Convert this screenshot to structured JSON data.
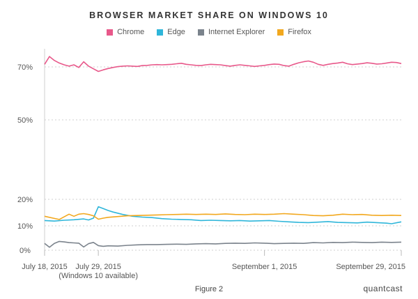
{
  "chart_data": {
    "type": "line",
    "title": "BROWSER MARKET SHARE ON WINDOWS 10",
    "xlabel": "",
    "ylabel": "",
    "ylim": [
      0,
      77
    ],
    "y_ticks": [
      {
        "value": 0,
        "label": "0%"
      },
      {
        "value": 10,
        "label": "10%"
      },
      {
        "value": 20,
        "label": "20%"
      },
      {
        "value": 50,
        "label": "50%"
      },
      {
        "value": 70,
        "label": "70%"
      }
    ],
    "x_range": [
      "2015-07-18",
      "2015-09-29"
    ],
    "x_ticks": [
      {
        "date": "2015-07-18",
        "label": "July 18, 2015",
        "sublabel": ""
      },
      {
        "date": "2015-07-29",
        "label": "July 29, 2015",
        "sublabel": "(Windows 10 available)"
      },
      {
        "date": "2015-09-01",
        "label": "September 1, 2015",
        "sublabel": ""
      },
      {
        "date": "2015-09-29",
        "label": "September 29, 2015",
        "sublabel": ""
      }
    ],
    "grid": true,
    "legend_position": "top-center",
    "series": [
      {
        "name": "Chrome",
        "color": "#e8588a",
        "points": [
          [
            "2015-07-18",
            71
          ],
          [
            "2015-07-19",
            74
          ],
          [
            "2015-07-20",
            72.5
          ],
          [
            "2015-07-21",
            71.5
          ],
          [
            "2015-07-22",
            70.8
          ],
          [
            "2015-07-23",
            70.3
          ],
          [
            "2015-07-24",
            70.8
          ],
          [
            "2015-07-25",
            69.8
          ],
          [
            "2015-07-26",
            72
          ],
          [
            "2015-07-27",
            70.3
          ],
          [
            "2015-07-28",
            69.3
          ],
          [
            "2015-07-29",
            68.3
          ],
          [
            "2015-07-30",
            68.9
          ],
          [
            "2015-07-31",
            69.4
          ],
          [
            "2015-08-01",
            69.8
          ],
          [
            "2015-08-02",
            70.1
          ],
          [
            "2015-08-03",
            70.3
          ],
          [
            "2015-08-04",
            70.4
          ],
          [
            "2015-08-05",
            70.3
          ],
          [
            "2015-08-06",
            70.2
          ],
          [
            "2015-08-07",
            70.5
          ],
          [
            "2015-08-08",
            70.6
          ],
          [
            "2015-08-09",
            70.8
          ],
          [
            "2015-08-10",
            70.9
          ],
          [
            "2015-08-11",
            70.8
          ],
          [
            "2015-08-12",
            70.9
          ],
          [
            "2015-08-13",
            71
          ],
          [
            "2015-08-14",
            71.2
          ],
          [
            "2015-08-15",
            71.4
          ],
          [
            "2015-08-16",
            71
          ],
          [
            "2015-08-17",
            70.8
          ],
          [
            "2015-08-18",
            70.6
          ],
          [
            "2015-08-19",
            70.5
          ],
          [
            "2015-08-20",
            70.8
          ],
          [
            "2015-08-21",
            71
          ],
          [
            "2015-08-22",
            70.9
          ],
          [
            "2015-08-23",
            70.8
          ],
          [
            "2015-08-24",
            70.5
          ],
          [
            "2015-08-25",
            70.3
          ],
          [
            "2015-08-26",
            70.6
          ],
          [
            "2015-08-27",
            70.8
          ],
          [
            "2015-08-28",
            70.6
          ],
          [
            "2015-08-29",
            70.4
          ],
          [
            "2015-08-30",
            70.2
          ],
          [
            "2015-08-31",
            70.4
          ],
          [
            "2015-09-01",
            70.6
          ],
          [
            "2015-09-02",
            70.9
          ],
          [
            "2015-09-03",
            71.1
          ],
          [
            "2015-09-04",
            71
          ],
          [
            "2015-09-05",
            70.5
          ],
          [
            "2015-09-06",
            70.3
          ],
          [
            "2015-09-07",
            71
          ],
          [
            "2015-09-08",
            71.6
          ],
          [
            "2015-09-09",
            72
          ],
          [
            "2015-09-10",
            72.3
          ],
          [
            "2015-09-11",
            71.8
          ],
          [
            "2015-09-12",
            71
          ],
          [
            "2015-09-13",
            70.6
          ],
          [
            "2015-09-14",
            71
          ],
          [
            "2015-09-15",
            71.3
          ],
          [
            "2015-09-16",
            71.5
          ],
          [
            "2015-09-17",
            71.8
          ],
          [
            "2015-09-18",
            71.2
          ],
          [
            "2015-09-19",
            70.9
          ],
          [
            "2015-09-20",
            71.1
          ],
          [
            "2015-09-21",
            71.3
          ],
          [
            "2015-09-22",
            71.6
          ],
          [
            "2015-09-23",
            71.4
          ],
          [
            "2015-09-24",
            71.1
          ],
          [
            "2015-09-25",
            71.2
          ],
          [
            "2015-09-26",
            71.5
          ],
          [
            "2015-09-27",
            71.8
          ],
          [
            "2015-09-28",
            71.7
          ],
          [
            "2015-09-29",
            71.3
          ]
        ]
      },
      {
        "name": "Edge",
        "color": "#2fb6da",
        "points": [
          [
            "2015-07-18",
            12
          ],
          [
            "2015-07-20",
            11.8
          ],
          [
            "2015-07-22",
            12.1
          ],
          [
            "2015-07-24",
            12.3
          ],
          [
            "2015-07-26",
            12.6
          ],
          [
            "2015-07-27",
            12.2
          ],
          [
            "2015-07-28",
            12.9
          ],
          [
            "2015-07-29",
            17.2
          ],
          [
            "2015-07-30",
            16.5
          ],
          [
            "2015-07-31",
            15.8
          ],
          [
            "2015-08-01",
            15.2
          ],
          [
            "2015-08-03",
            14.3
          ],
          [
            "2015-08-05",
            13.6
          ],
          [
            "2015-08-07",
            13.3
          ],
          [
            "2015-08-09",
            13.1
          ],
          [
            "2015-08-11",
            12.7
          ],
          [
            "2015-08-13",
            12.5
          ],
          [
            "2015-08-15",
            12.4
          ],
          [
            "2015-08-17",
            12.3
          ],
          [
            "2015-08-19",
            12
          ],
          [
            "2015-08-21",
            12.1
          ],
          [
            "2015-08-23",
            12
          ],
          [
            "2015-08-25",
            11.9
          ],
          [
            "2015-08-27",
            12
          ],
          [
            "2015-08-29",
            11.8
          ],
          [
            "2015-08-31",
            11.9
          ],
          [
            "2015-09-02",
            12
          ],
          [
            "2015-09-04",
            11.7
          ],
          [
            "2015-09-06",
            11.5
          ],
          [
            "2015-09-08",
            11.3
          ],
          [
            "2015-09-10",
            11.2
          ],
          [
            "2015-09-12",
            11.4
          ],
          [
            "2015-09-14",
            11.6
          ],
          [
            "2015-09-16",
            11.3
          ],
          [
            "2015-09-18",
            11.2
          ],
          [
            "2015-09-20",
            11.1
          ],
          [
            "2015-09-22",
            11.4
          ],
          [
            "2015-09-24",
            11.2
          ],
          [
            "2015-09-26",
            11
          ],
          [
            "2015-09-27",
            10.8
          ],
          [
            "2015-09-29",
            11.5
          ]
        ]
      },
      {
        "name": "Internet Explorer",
        "color": "#7b838c",
        "points": [
          [
            "2015-07-18",
            2.8
          ],
          [
            "2015-07-19",
            1.2
          ],
          [
            "2015-07-20",
            2.8
          ],
          [
            "2015-07-21",
            3.6
          ],
          [
            "2015-07-22",
            3.4
          ],
          [
            "2015-07-23",
            3.1
          ],
          [
            "2015-07-24",
            3
          ],
          [
            "2015-07-25",
            2.9
          ],
          [
            "2015-07-26",
            1.3
          ],
          [
            "2015-07-27",
            2.7
          ],
          [
            "2015-07-28",
            3.2
          ],
          [
            "2015-07-29",
            1.9
          ],
          [
            "2015-07-30",
            1.6
          ],
          [
            "2015-07-31",
            1.8
          ],
          [
            "2015-08-02",
            1.7
          ],
          [
            "2015-08-04",
            2
          ],
          [
            "2015-08-06",
            2.2
          ],
          [
            "2015-08-08",
            2.3
          ],
          [
            "2015-08-10",
            2.3
          ],
          [
            "2015-08-12",
            2.4
          ],
          [
            "2015-08-14",
            2.5
          ],
          [
            "2015-08-16",
            2.4
          ],
          [
            "2015-08-18",
            2.6
          ],
          [
            "2015-08-20",
            2.7
          ],
          [
            "2015-08-22",
            2.6
          ],
          [
            "2015-08-24",
            2.8
          ],
          [
            "2015-08-26",
            2.9
          ],
          [
            "2015-08-28",
            2.8
          ],
          [
            "2015-08-30",
            3
          ],
          [
            "2015-09-01",
            2.9
          ],
          [
            "2015-09-03",
            2.7
          ],
          [
            "2015-09-05",
            2.8
          ],
          [
            "2015-09-07",
            2.9
          ],
          [
            "2015-09-09",
            2.8
          ],
          [
            "2015-09-11",
            3.1
          ],
          [
            "2015-09-13",
            3
          ],
          [
            "2015-09-15",
            3.2
          ],
          [
            "2015-09-17",
            3.1
          ],
          [
            "2015-09-19",
            3.3
          ],
          [
            "2015-09-21",
            3.2
          ],
          [
            "2015-09-23",
            3.1
          ],
          [
            "2015-09-25",
            3.3
          ],
          [
            "2015-09-27",
            3.2
          ],
          [
            "2015-09-29",
            3.3
          ]
        ]
      },
      {
        "name": "Firefox",
        "color": "#f2a81e",
        "points": [
          [
            "2015-07-18",
            13.6
          ],
          [
            "2015-07-20",
            12.8
          ],
          [
            "2015-07-21",
            12.4
          ],
          [
            "2015-07-22",
            13.4
          ],
          [
            "2015-07-23",
            14.4
          ],
          [
            "2015-07-24",
            13.6
          ],
          [
            "2015-07-25",
            14.4
          ],
          [
            "2015-07-26",
            14.6
          ],
          [
            "2015-07-27",
            14.3
          ],
          [
            "2015-07-28",
            13.8
          ],
          [
            "2015-07-29",
            12.5
          ],
          [
            "2015-07-30",
            12.9
          ],
          [
            "2015-07-31",
            13.2
          ],
          [
            "2015-08-02",
            13.5
          ],
          [
            "2015-08-04",
            13.8
          ],
          [
            "2015-08-06",
            13.9
          ],
          [
            "2015-08-08",
            14
          ],
          [
            "2015-08-10",
            14.1
          ],
          [
            "2015-08-12",
            14.2
          ],
          [
            "2015-08-14",
            14.3
          ],
          [
            "2015-08-16",
            14.4
          ],
          [
            "2015-08-18",
            14.3
          ],
          [
            "2015-08-20",
            14.4
          ],
          [
            "2015-08-22",
            14.3
          ],
          [
            "2015-08-24",
            14.5
          ],
          [
            "2015-08-26",
            14.3
          ],
          [
            "2015-08-28",
            14.2
          ],
          [
            "2015-08-30",
            14.4
          ],
          [
            "2015-09-01",
            14.3
          ],
          [
            "2015-09-03",
            14.4
          ],
          [
            "2015-09-05",
            14.6
          ],
          [
            "2015-09-07",
            14.4
          ],
          [
            "2015-09-09",
            14.2
          ],
          [
            "2015-09-11",
            13.9
          ],
          [
            "2015-09-13",
            13.8
          ],
          [
            "2015-09-15",
            14
          ],
          [
            "2015-09-17",
            14.4
          ],
          [
            "2015-09-19",
            14.2
          ],
          [
            "2015-09-21",
            14.3
          ],
          [
            "2015-09-23",
            14
          ],
          [
            "2015-09-25",
            13.9
          ],
          [
            "2015-09-27",
            14
          ],
          [
            "2015-09-29",
            13.9
          ]
        ]
      }
    ]
  },
  "footer": {
    "caption": "Figure 2",
    "brand": "quantcast"
  }
}
